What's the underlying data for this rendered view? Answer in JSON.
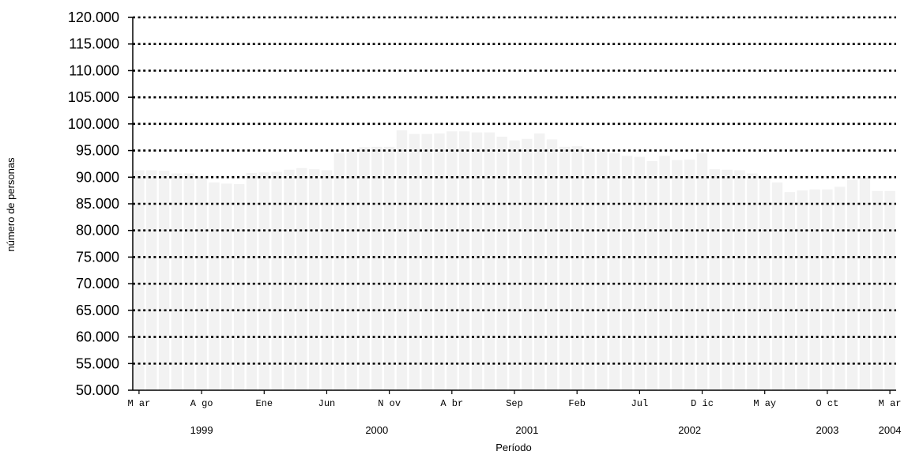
{
  "chart_data": {
    "type": "bar",
    "title": "",
    "xlabel": "Período",
    "ylabel": "número de personas",
    "ylim": [
      50000,
      120000
    ],
    "yticks": [
      50000,
      55000,
      60000,
      65000,
      70000,
      75000,
      80000,
      85000,
      90000,
      95000,
      100000,
      105000,
      110000,
      115000,
      120000
    ],
    "ytick_labels": [
      "50.000",
      "55.000",
      "60.000",
      "65.000",
      "70.000",
      "75.000",
      "80.000",
      "85.000",
      "90.000",
      "95.000",
      "100.000",
      "105.000",
      "110.000",
      "115.000",
      "120.000"
    ],
    "grid": "horizontal dotted",
    "bar_color": "#f2f2f2",
    "start_month": "1999-03",
    "values": [
      91300,
      91300,
      91200,
      90700,
      90700,
      90100,
      89000,
      88800,
      88700,
      90800,
      90900,
      91000,
      91400,
      91700,
      91500,
      91300,
      94500,
      94800,
      95600,
      95700,
      95700,
      98800,
      98100,
      98100,
      98200,
      98600,
      98600,
      98400,
      98400,
      97600,
      96900,
      97200,
      98200,
      97100,
      95700,
      95800,
      95400,
      95200,
      94500,
      94000,
      93800,
      93000,
      94000,
      93200,
      93300,
      94500,
      91500,
      91400,
      91300,
      90700,
      90000,
      89000,
      87200,
      87500,
      87700,
      87700,
      88200,
      89500,
      89900,
      87400,
      87400
    ],
    "x_month_ticks": [
      {
        "index": 0,
        "label": "M ar"
      },
      {
        "index": 5,
        "label": "A go"
      },
      {
        "index": 10,
        "label": "Ene"
      },
      {
        "index": 15,
        "label": "Jun"
      },
      {
        "index": 20,
        "label": "N ov"
      },
      {
        "index": 25,
        "label": "A br"
      },
      {
        "index": 30,
        "label": "Sep"
      },
      {
        "index": 35,
        "label": "Feb"
      },
      {
        "index": 40,
        "label": "Jul"
      },
      {
        "index": 45,
        "label": "D ic"
      },
      {
        "index": 50,
        "label": "M ay"
      },
      {
        "index": 55,
        "label": "O ct"
      },
      {
        "index": 60,
        "label": "M ar"
      }
    ],
    "x_year_labels": [
      {
        "index": 5,
        "label": "1999"
      },
      {
        "index": 19,
        "label": "2000"
      },
      {
        "index": 31,
        "label": "2001"
      },
      {
        "index": 44,
        "label": "2002"
      },
      {
        "index": 55,
        "label": "2003"
      },
      {
        "index": 60,
        "label": "2004"
      }
    ]
  }
}
